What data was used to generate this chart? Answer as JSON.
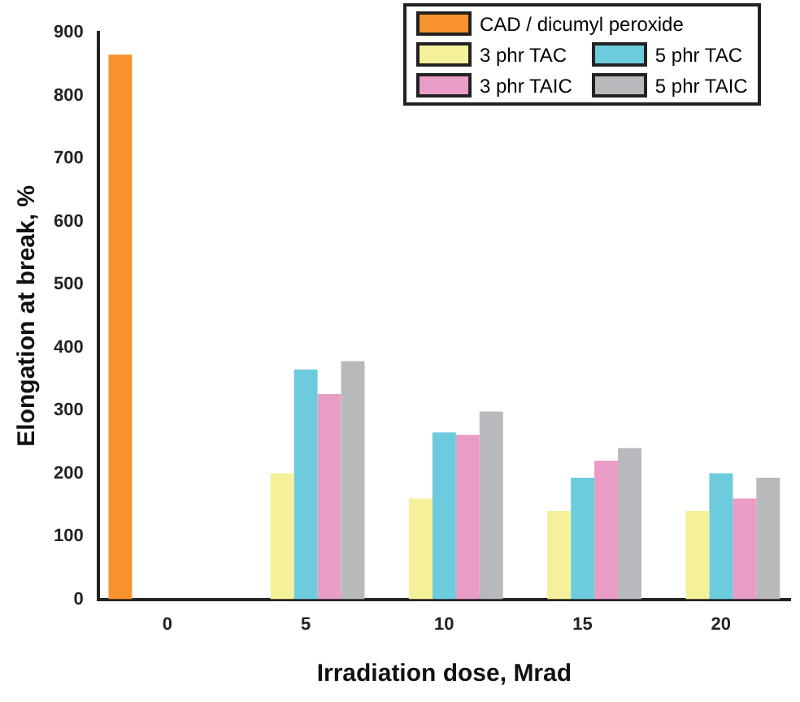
{
  "chart_data": {
    "type": "bar",
    "xlabel": "Irradiation dose, Mrad",
    "ylabel": "Elongation at break, %",
    "categories": [
      "0",
      "5",
      "10",
      "15",
      "20"
    ],
    "series": [
      {
        "name": "CAD / dicumyl peroxide",
        "color": "#f7932f",
        "values": [
          865,
          null,
          null,
          null,
          null
        ]
      },
      {
        "name": "3 phr TAC",
        "color": "#f5f09a",
        "values": [
          null,
          200,
          160,
          140,
          140
        ]
      },
      {
        "name": "5 phr TAC",
        "color": "#6ccbdc",
        "values": [
          null,
          365,
          265,
          193,
          200
        ]
      },
      {
        "name": "3 phr TAIC",
        "color": "#e99cc6",
        "values": [
          null,
          326,
          261,
          220,
          160
        ]
      },
      {
        "name": "5 phr TAIC",
        "color": "#b8b9bd",
        "values": [
          null,
          378,
          298,
          240,
          193
        ]
      }
    ],
    "ylim": [
      0,
      900
    ],
    "yticks": [
      0,
      100,
      200,
      300,
      400,
      500,
      600,
      700,
      800,
      900
    ],
    "grid": false,
    "legend": "top right"
  }
}
